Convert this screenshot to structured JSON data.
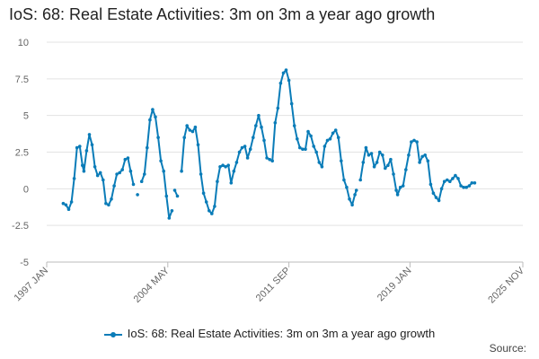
{
  "chart_data": {
    "type": "line",
    "title": "IoS: 68: Real Estate Activities: 3m on 3m a year ago growth",
    "xlabel": "",
    "ylabel": "",
    "ylim": [
      -5,
      10
    ],
    "yticks": [
      "10",
      "7.5",
      "5",
      "2.5",
      "0",
      "-2.5",
      "-5"
    ],
    "xticks": [
      "1997 JAN",
      "2004 MAY",
      "2011 SEP",
      "2019 JAN",
      "2025 NOV"
    ],
    "xrange": [
      "1997 JAN",
      "2025 NOV"
    ],
    "grid": "horizontal",
    "legend": "bottom",
    "series": [
      {
        "name": "IoS: 68: Real Estate Activities: 3m on 3m a year ago growth",
        "color": "#0a7cb8",
        "points": [
          [
            "1998 JAN",
            -1.0
          ],
          [
            "1998 MAR",
            -1.1
          ],
          [
            "1998 MAY",
            -1.4
          ],
          [
            "1998 JUL",
            -0.9
          ],
          [
            "1998 SEP",
            0.7
          ],
          [
            "1998 NOV",
            2.8
          ],
          [
            "1999 JAN",
            2.9
          ],
          [
            "1999 MAR",
            1.6
          ],
          [
            "1999 APR",
            1.2
          ],
          [
            "1999 JUN",
            2.6
          ],
          [
            "1999 AUG",
            3.7
          ],
          [
            "1999 OCT",
            3.0
          ],
          [
            "1999 DEC",
            1.5
          ],
          [
            "2000 FEB",
            0.9
          ],
          [
            "2000 APR",
            1.1
          ],
          [
            "2000 JUN",
            0.6
          ],
          [
            "2000 AUG",
            -1.0
          ],
          [
            "2000 OCT",
            -1.1
          ],
          [
            "2000 DEC",
            -0.7
          ],
          [
            "2001 FEB",
            0.2
          ],
          [
            "2001 APR",
            1.0
          ],
          [
            "2001 JUN",
            1.1
          ],
          [
            "2001 AUG",
            1.3
          ],
          [
            "2001 OCT",
            2.0
          ],
          [
            "2001 DEC",
            2.1
          ],
          [
            "2002 FEB",
            1.2
          ],
          [
            "2002 APR",
            0.3
          ],
          [
            "2002 JUN",
            null
          ],
          [
            "2002 JUL",
            -0.4
          ],
          [
            "2002 SEP",
            null
          ],
          [
            "2002 OCT",
            0.5
          ],
          [
            "2002 DEC",
            1.0
          ],
          [
            "2003 FEB",
            2.8
          ],
          [
            "2003 APR",
            4.7
          ],
          [
            "2003 JUN",
            5.4
          ],
          [
            "2003 AUG",
            4.9
          ],
          [
            "2003 OCT",
            3.5
          ],
          [
            "2003 DEC",
            1.9
          ],
          [
            "2004 FEB",
            1.2
          ],
          [
            "2004 APR",
            -0.5
          ],
          [
            "2004 JUN",
            -2.0
          ],
          [
            "2004 AUG",
            -1.5
          ],
          [
            "2004 SEP",
            null
          ],
          [
            "2004 OCT",
            -0.1
          ],
          [
            "2004 DEC",
            -0.5
          ],
          [
            "2005 FEB",
            null
          ],
          [
            "2005 MAR",
            1.2
          ],
          [
            "2005 MAY",
            3.5
          ],
          [
            "2005 JUL",
            4.3
          ],
          [
            "2005 SEP",
            4.0
          ],
          [
            "2005 NOV",
            3.9
          ],
          [
            "2006 JAN",
            4.2
          ],
          [
            "2006 MAR",
            3.0
          ],
          [
            "2006 MAY",
            1.0
          ],
          [
            "2006 JUL",
            -0.3
          ],
          [
            "2006 SEP",
            -0.9
          ],
          [
            "2006 NOV",
            -1.5
          ],
          [
            "2007 JAN",
            -1.7
          ],
          [
            "2007 MAR",
            -1.2
          ],
          [
            "2007 MAY",
            0.5
          ],
          [
            "2007 JUL",
            1.5
          ],
          [
            "2007 SEP",
            1.6
          ],
          [
            "2007 NOV",
            1.5
          ],
          [
            "2008 JAN",
            1.6
          ],
          [
            "2008 MAR",
            0.4
          ],
          [
            "2008 MAY",
            1.2
          ],
          [
            "2008 JUL",
            1.8
          ],
          [
            "2008 SEP",
            2.5
          ],
          [
            "2008 NOV",
            2.8
          ],
          [
            "2009 JAN",
            2.9
          ],
          [
            "2009 MAR",
            2.1
          ],
          [
            "2009 MAY",
            2.7
          ],
          [
            "2009 JUL",
            3.5
          ],
          [
            "2009 SEP",
            4.3
          ],
          [
            "2009 NOV",
            5.0
          ],
          [
            "2010 JAN",
            4.2
          ],
          [
            "2010 MAR",
            3.3
          ],
          [
            "2010 MAY",
            2.1
          ],
          [
            "2010 JUL",
            2.0
          ],
          [
            "2010 SEP",
            1.9
          ],
          [
            "2010 NOV",
            4.5
          ],
          [
            "2011 JAN",
            5.5
          ],
          [
            "2011 MAR",
            7.2
          ],
          [
            "2011 MAY",
            7.9
          ],
          [
            "2011 JUL",
            8.1
          ],
          [
            "2011 SEP",
            7.4
          ],
          [
            "2011 NOV",
            5.8
          ],
          [
            "2012 JAN",
            4.3
          ],
          [
            "2012 MAR",
            3.4
          ],
          [
            "2012 MAY",
            2.8
          ],
          [
            "2012 JUL",
            2.7
          ],
          [
            "2012 SEP",
            2.7
          ],
          [
            "2012 NOV",
            3.9
          ],
          [
            "2013 JAN",
            3.6
          ],
          [
            "2013 MAR",
            2.9
          ],
          [
            "2013 MAY",
            2.5
          ],
          [
            "2013 JUL",
            1.8
          ],
          [
            "2013 SEP",
            1.5
          ],
          [
            "2013 NOV",
            2.9
          ],
          [
            "2014 JAN",
            3.3
          ],
          [
            "2014 MAR",
            3.4
          ],
          [
            "2014 MAY",
            3.8
          ],
          [
            "2014 JUL",
            4.0
          ],
          [
            "2014 SEP",
            3.5
          ],
          [
            "2014 NOV",
            1.9
          ],
          [
            "2015 JAN",
            0.6
          ],
          [
            "2015 MAR",
            0.1
          ],
          [
            "2015 MAY",
            -0.7
          ],
          [
            "2015 JUL",
            -1.1
          ],
          [
            "2015 SEP",
            -0.4
          ],
          [
            "2015 OCT",
            -0.1
          ],
          [
            "2015 NOV",
            null
          ],
          [
            "2016 JAN",
            0.6
          ],
          [
            "2016 MAR",
            1.8
          ],
          [
            "2016 MAY",
            2.8
          ],
          [
            "2016 JUL",
            2.3
          ],
          [
            "2016 SEP",
            2.4
          ],
          [
            "2016 NOV",
            1.5
          ],
          [
            "2017 JAN",
            1.8
          ],
          [
            "2017 MAR",
            2.5
          ],
          [
            "2017 MAY",
            2.3
          ],
          [
            "2017 JUL",
            1.4
          ],
          [
            "2017 SEP",
            1.6
          ],
          [
            "2017 NOV",
            2.0
          ],
          [
            "2018 JAN",
            1.0
          ],
          [
            "2018 MAR",
            -0.1
          ],
          [
            "2018 APR",
            -0.4
          ],
          [
            "2018 JUN",
            0.1
          ],
          [
            "2018 AUG",
            0.2
          ],
          [
            "2018 OCT",
            1.3
          ],
          [
            "2018 DEC",
            2.3
          ],
          [
            "2019 FEB",
            3.2
          ],
          [
            "2019 APR",
            3.3
          ],
          [
            "2019 JUN",
            3.2
          ],
          [
            "2019 AUG",
            1.8
          ],
          [
            "2019 OCT",
            2.2
          ],
          [
            "2019 DEC",
            2.3
          ],
          [
            "2020 FEB",
            1.9
          ],
          [
            "2020 APR",
            0.3
          ],
          [
            "2020 JUN",
            -0.3
          ],
          [
            "2020 AUG",
            -0.6
          ],
          [
            "2020 OCT",
            -0.8
          ],
          [
            "2020 DEC",
            0.0
          ],
          [
            "2021 FEB",
            0.5
          ],
          [
            "2021 APR",
            0.6
          ],
          [
            "2021 JUN",
            0.5
          ],
          [
            "2021 AUG",
            0.7
          ],
          [
            "2021 OCT",
            0.9
          ],
          [
            "2021 DEC",
            0.7
          ],
          [
            "2022 FEB",
            0.2
          ],
          [
            "2022 APR",
            0.1
          ],
          [
            "2022 JUN",
            0.1
          ],
          [
            "2022 AUG",
            0.2
          ],
          [
            "2022 OCT",
            0.4
          ],
          [
            "2022 DEC",
            0.4
          ]
        ]
      }
    ]
  },
  "legend_label": "IoS: 68: Real Estate Activities: 3m on 3m a year ago growth",
  "source_label": "Source:"
}
